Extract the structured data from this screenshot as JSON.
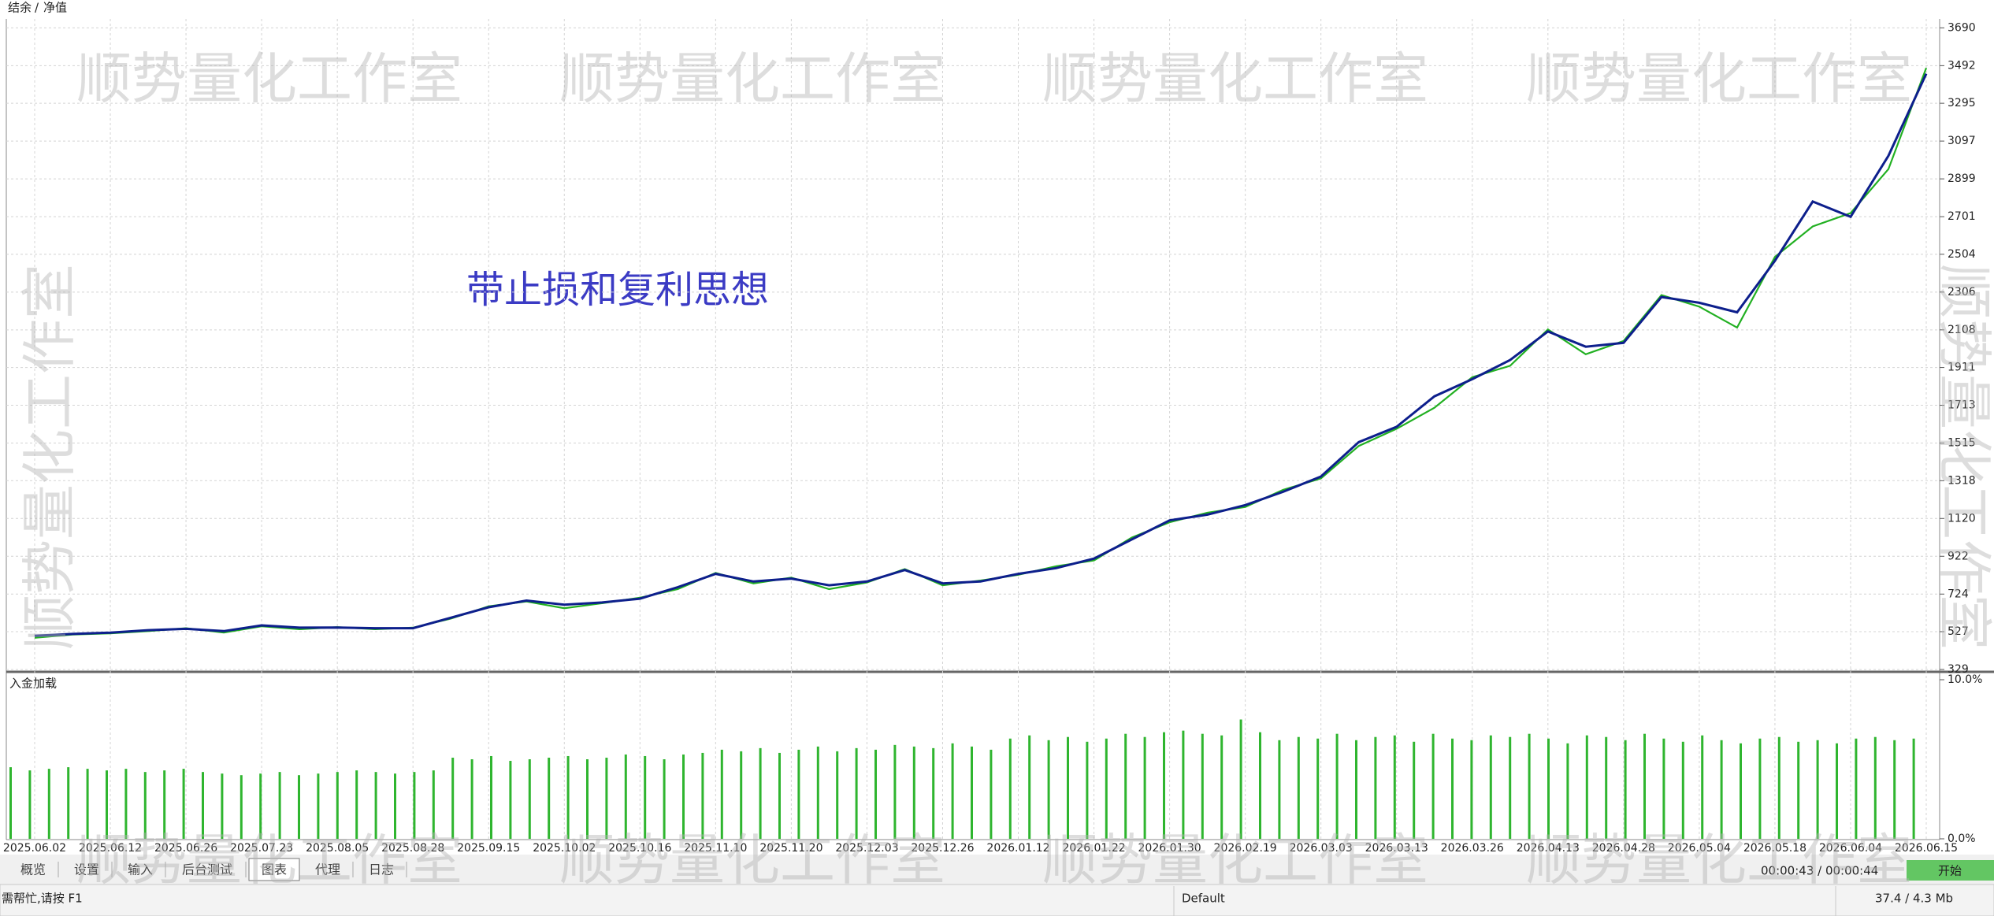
{
  "chart_data": [
    {
      "type": "line",
      "annotation": "带止损和复利思想",
      "categories": [
        "2025.06.02",
        null,
        "2025.06.12",
        null,
        "2025.06.26",
        null,
        "2025.07.23",
        null,
        "2025.08.05",
        null,
        "2025.08.28",
        null,
        "2025.09.15",
        null,
        "2025.10.02",
        null,
        "2025.10.16",
        null,
        "2025.11.10",
        null,
        "2025.11.20",
        null,
        "2025.12.03",
        null,
        "2025.12.26",
        null,
        "2026.01.12",
        null,
        "2026.01.22",
        null,
        "2026.01.30",
        null,
        "2026.02.19",
        null,
        "2026.03.03",
        null,
        "2026.03.13",
        null,
        "2026.03.26",
        null,
        "2026.04.13",
        null,
        "2026.04.28",
        null,
        "2026.05.04",
        null,
        "2026.05.18",
        null,
        "2026.06.04",
        null,
        "2026.06.15"
      ],
      "series": [
        {
          "name": "结余",
          "color": "#0d1f8c",
          "values": [
            505,
            515,
            522,
            535,
            542,
            530,
            560,
            548,
            549,
            545,
            545,
            600,
            655,
            690,
            668,
            680,
            700,
            760,
            830,
            790,
            805,
            770,
            790,
            850,
            780,
            790,
            830,
            860,
            910,
            1010,
            1110,
            1140,
            1190,
            1260,
            1340,
            1520,
            1600,
            1760,
            1850,
            1950,
            2100,
            2020,
            2040,
            2280,
            2250,
            2200,
            2470,
            2780,
            2700,
            3020,
            3450
          ]
        },
        {
          "name": "净值",
          "color": "#22b022",
          "values": [
            495,
            512,
            518,
            530,
            545,
            522,
            555,
            540,
            551,
            540,
            548,
            595,
            660,
            685,
            650,
            676,
            705,
            750,
            835,
            780,
            810,
            750,
            785,
            855,
            770,
            795,
            825,
            870,
            900,
            1020,
            1100,
            1150,
            1180,
            1270,
            1330,
            1500,
            1590,
            1700,
            1860,
            1920,
            2110,
            1980,
            2050,
            2290,
            2230,
            2120,
            2490,
            2650,
            2720,
            2950,
            3480
          ]
        }
      ],
      "ylim": [
        329,
        3737
      ],
      "yticks": [
        329,
        527,
        724,
        922,
        1120,
        1318,
        1515,
        1713,
        1911,
        2108,
        2306,
        2504,
        2701,
        2899,
        3097,
        3295,
        3492,
        3690
      ],
      "grid": true
    },
    {
      "type": "bar",
      "title": "入金加载",
      "color": "#2fb52f",
      "values": [
        4.5,
        4.3,
        4.4,
        4.5,
        4.4,
        4.3,
        4.4,
        4.2,
        4.3,
        4.4,
        4.2,
        4.1,
        4.0,
        4.1,
        4.2,
        4.0,
        4.1,
        4.2,
        4.3,
        4.2,
        4.1,
        4.2,
        4.3,
        5.1,
        5.0,
        5.2,
        4.9,
        5.0,
        5.1,
        5.2,
        5.0,
        5.1,
        5.3,
        5.2,
        5.0,
        5.3,
        5.4,
        5.6,
        5.5,
        5.7,
        5.4,
        5.6,
        5.8,
        5.5,
        5.7,
        5.6,
        5.9,
        5.8,
        5.7,
        6.0,
        5.8,
        5.6,
        6.3,
        6.5,
        6.2,
        6.4,
        6.1,
        6.3,
        6.6,
        6.4,
        6.7,
        6.8,
        6.6,
        6.5,
        7.5,
        6.7,
        6.2,
        6.4,
        6.3,
        6.6,
        6.2,
        6.4,
        6.5,
        6.1,
        6.6,
        6.3,
        6.2,
        6.5,
        6.4,
        6.6,
        6.3,
        6.0,
        6.5,
        6.4,
        6.2,
        6.6,
        6.3,
        6.1,
        6.5,
        6.2,
        6.0,
        6.3,
        6.4,
        6.1,
        6.2,
        6.0,
        6.3,
        6.4,
        6.2,
        6.3
      ],
      "ylim": [
        0,
        10
      ],
      "yticks": [
        {
          "value": 0,
          "label": "0.0%"
        },
        {
          "value": 10,
          "label": "10.0%"
        }
      ]
    }
  ],
  "ui": {
    "watermark": "顺势量化工作室",
    "legend_separator": "/",
    "tabs": [
      "概览",
      "设置",
      "输入",
      "后台测试",
      "图表",
      "代理",
      "日志"
    ],
    "active_tab": 4,
    "timer": "00:00:43 / 00:00:44",
    "start_button": "开始",
    "status": {
      "help": "需帮忙,请按 F1",
      "profile": "Default",
      "memory": "37.4 / 4.3 Mb"
    }
  }
}
